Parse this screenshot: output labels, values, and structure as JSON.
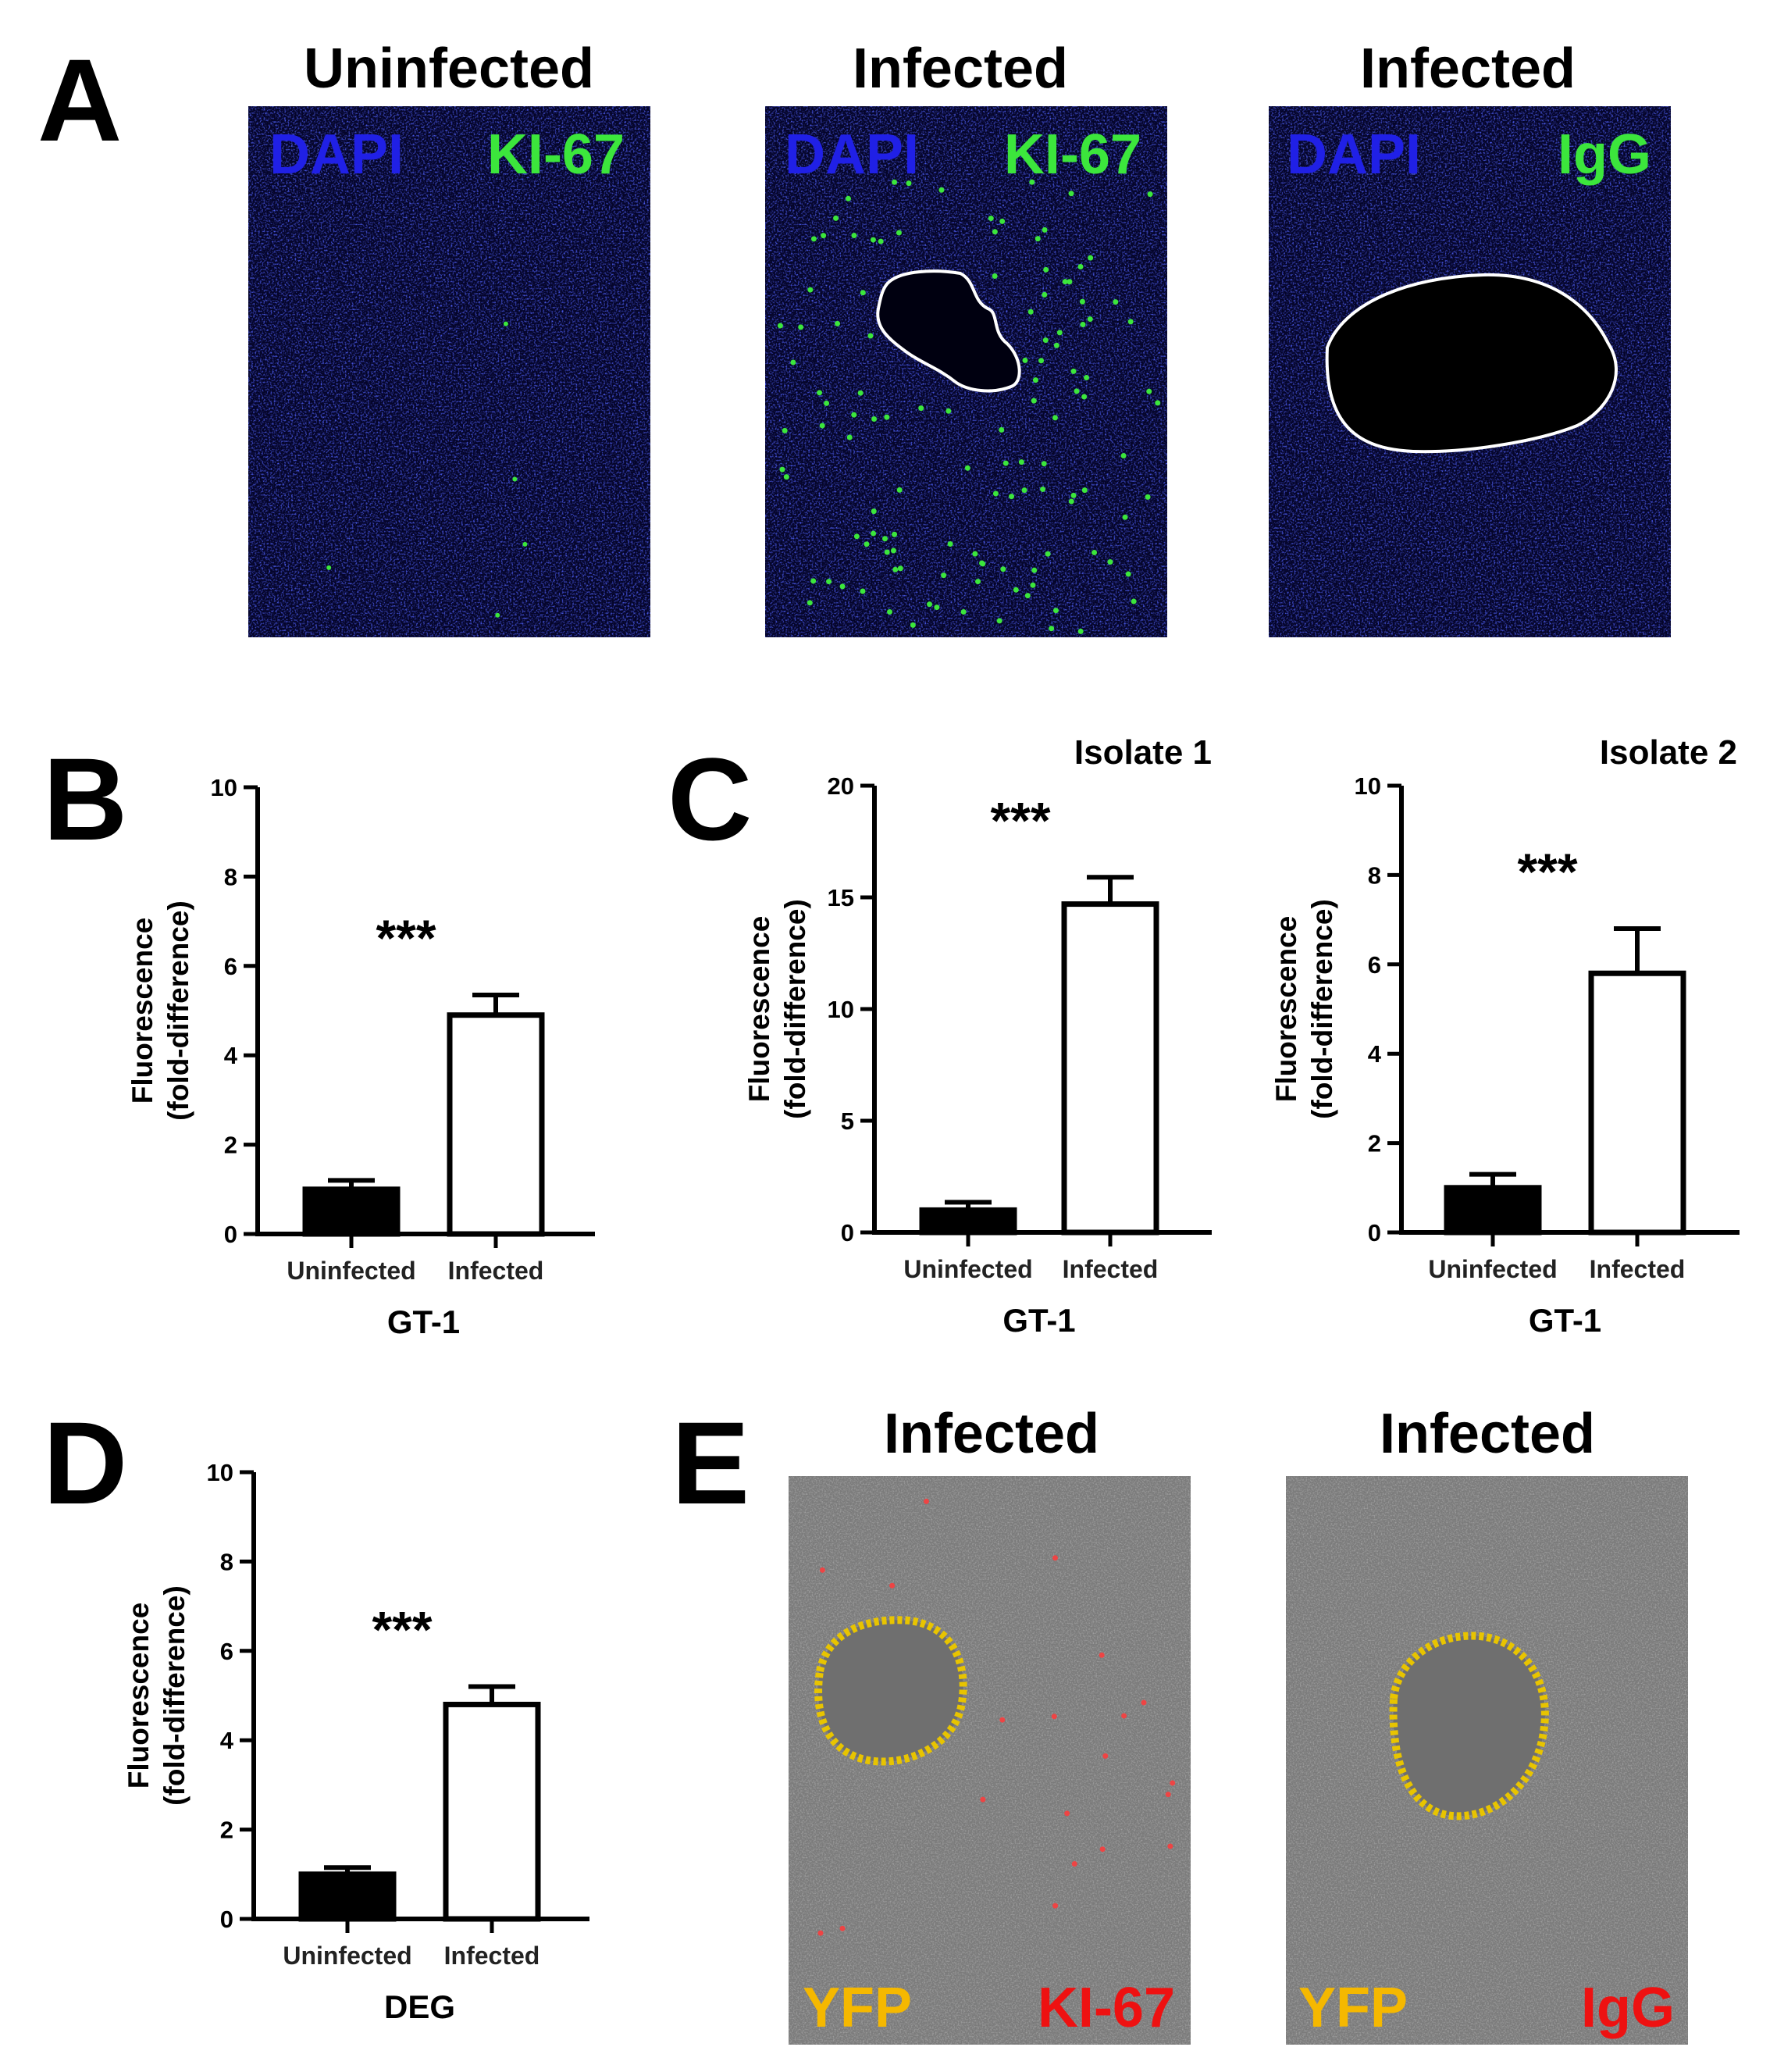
{
  "panel_letters": [
    "A",
    "B",
    "C",
    "D",
    "E"
  ],
  "panel_a": {
    "images": [
      {
        "title": "Uninfected",
        "channels": [
          "DAPI",
          "KI-67"
        ],
        "colors": [
          "#2020e6",
          "#3ce63c"
        ],
        "cyst": "none",
        "positive_cells": "few"
      },
      {
        "title": "Infected",
        "channels": [
          "DAPI",
          "KI-67"
        ],
        "colors": [
          "#2020e6",
          "#3ce63c"
        ],
        "cyst": "outlined",
        "positive_cells": "many"
      },
      {
        "title": "Infected",
        "channels": [
          "DAPI",
          "IgG"
        ],
        "colors": [
          "#2020e6",
          "#3ce63c"
        ],
        "cyst": "outlined",
        "positive_cells": "none"
      }
    ]
  },
  "panel_e": {
    "images": [
      {
        "title": "Infected",
        "channels": [
          "YFP",
          "KI-67"
        ],
        "colors": [
          "#f5b800",
          "#ee1111"
        ],
        "positive_cells": "some"
      },
      {
        "title": "Infected",
        "channels": [
          "YFP",
          "IgG"
        ],
        "colors": [
          "#f5b800",
          "#ee1111"
        ],
        "positive_cells": "none"
      }
    ]
  },
  "chart_data": [
    {
      "panel": "B",
      "type": "bar",
      "categories": [
        "Uninfected",
        "Infected"
      ],
      "values": [
        1.0,
        4.9
      ],
      "errors": [
        0.2,
        0.45
      ],
      "fills": [
        "#000000",
        "#ffffff"
      ],
      "title": "",
      "xlabel": "GT-1",
      "ylabel": "Fluorescence (fold-difference)",
      "ylabel_lines": [
        "Fluorescence",
        "(fold-difference)"
      ],
      "ylim": [
        0,
        10
      ],
      "yticks": [
        0,
        2,
        4,
        6,
        8,
        10
      ],
      "significance": "***",
      "grid": false
    },
    {
      "panel": "C",
      "type": "bar",
      "categories": [
        "Uninfected",
        "Infected"
      ],
      "values": [
        1.0,
        14.7
      ],
      "errors": [
        0.35,
        1.2
      ],
      "fills": [
        "#000000",
        "#ffffff"
      ],
      "title": "Isolate 1",
      "xlabel": "GT-1",
      "ylabel": "Fluorescence (fold-difference)",
      "ylabel_lines": [
        "Fluorescence",
        "(fold-difference)"
      ],
      "ylim": [
        0,
        20
      ],
      "yticks": [
        0,
        5,
        10,
        15,
        20
      ],
      "significance": "***",
      "grid": false
    },
    {
      "panel": "C",
      "type": "bar",
      "categories": [
        "Uninfected",
        "Infected"
      ],
      "values": [
        1.0,
        5.8
      ],
      "errors": [
        0.3,
        1.0
      ],
      "fills": [
        "#000000",
        "#ffffff"
      ],
      "title": "Isolate 2",
      "xlabel": "GT-1",
      "ylabel": "Fluorescence (fold-difference)",
      "ylabel_lines": [
        "Fluorescence",
        "(fold-difference)"
      ],
      "ylim": [
        0,
        10
      ],
      "yticks": [
        0,
        2,
        4,
        6,
        8,
        10
      ],
      "significance": "***",
      "grid": false
    },
    {
      "panel": "D",
      "type": "bar",
      "categories": [
        "Uninfected",
        "Infected"
      ],
      "values": [
        1.0,
        4.8
      ],
      "errors": [
        0.15,
        0.4
      ],
      "fills": [
        "#000000",
        "#ffffff"
      ],
      "title": "",
      "xlabel": "DEG",
      "ylabel": "Fluorescence (fold-difference)",
      "ylabel_lines": [
        "Fluorescence",
        "(fold-difference)"
      ],
      "ylim": [
        0,
        10
      ],
      "yticks": [
        0,
        2,
        4,
        6,
        8,
        10
      ],
      "significance": "***",
      "grid": false
    }
  ]
}
